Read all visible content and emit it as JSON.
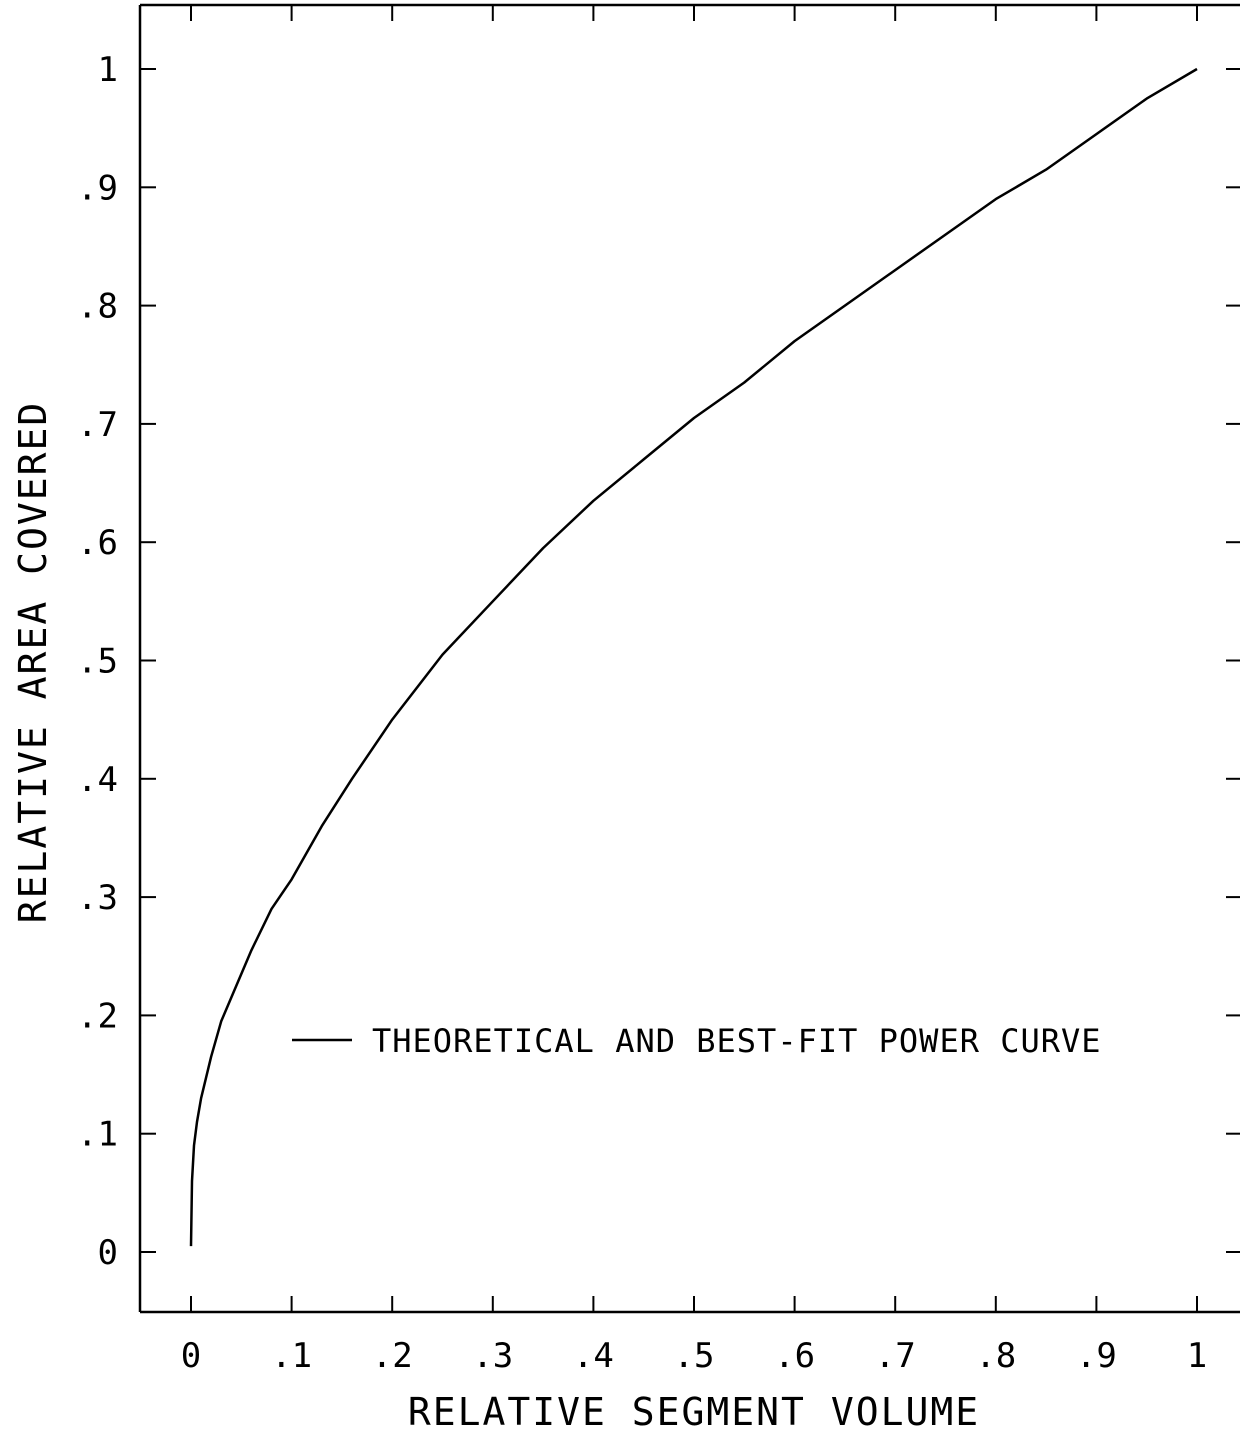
{
  "chart_data": {
    "type": "line",
    "title": "",
    "xlabel": "RELATIVE SEGMENT VOLUME",
    "ylabel": "RELATIVE AREA COVERED",
    "xlim": [
      -0.05,
      1.05
    ],
    "ylim": [
      -0.05,
      1.05
    ],
    "x_ticks": [
      0,
      0.1,
      0.2,
      0.3,
      0.4,
      0.5,
      0.6,
      0.7,
      0.8,
      0.9,
      1
    ],
    "x_tick_labels": [
      "0",
      ".1",
      ".2",
      ".3",
      ".4",
      ".5",
      ".6",
      ".7",
      ".8",
      ".9",
      "1"
    ],
    "y_ticks": [
      0,
      0.1,
      0.2,
      0.3,
      0.4,
      0.5,
      0.6,
      0.7,
      0.8,
      0.9,
      1
    ],
    "y_tick_labels": [
      "0",
      ".1",
      ".2",
      ".3",
      ".4",
      ".5",
      ".6",
      ".7",
      ".8",
      ".9",
      "1"
    ],
    "grid": false,
    "legend": {
      "placement": "center",
      "entries": [
        "THEORETICAL AND BEST-FIT POWER CURVE"
      ]
    },
    "series": [
      {
        "name": "THEORETICAL AND BEST-FIT POWER CURVE",
        "x": [
          0,
          0.001,
          0.003,
          0.006,
          0.01,
          0.02,
          0.03,
          0.04,
          0.06,
          0.08,
          0.1,
          0.13,
          0.16,
          0.2,
          0.25,
          0.3,
          0.35,
          0.4,
          0.45,
          0.5,
          0.55,
          0.6,
          0.65,
          0.7,
          0.75,
          0.8,
          0.85,
          0.9,
          0.95,
          1.0
        ],
        "y": [
          0.005,
          0.06,
          0.09,
          0.11,
          0.13,
          0.165,
          0.195,
          0.215,
          0.255,
          0.29,
          0.315,
          0.36,
          0.4,
          0.45,
          0.505,
          0.55,
          0.595,
          0.635,
          0.67,
          0.705,
          0.735,
          0.77,
          0.8,
          0.83,
          0.86,
          0.89,
          0.915,
          0.945,
          0.975,
          1.0
        ]
      }
    ]
  }
}
